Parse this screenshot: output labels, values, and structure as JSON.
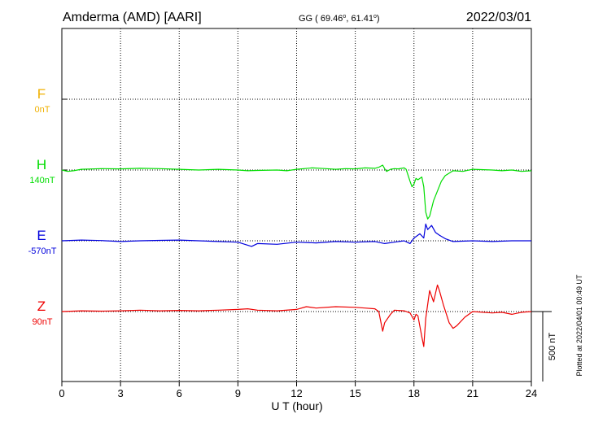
{
  "header": {
    "station": "Amderma (AMD)  [AARI]",
    "coords_prefix": "GG ( 69.46",
    "coords_mid": ",  61.41",
    "coords_suffix": ")",
    "date": "2022/03/01"
  },
  "footer": {
    "plotted": "Plotted at 2022/04/01 00:49 UT"
  },
  "chart_data": {
    "type": "line",
    "xlabel": "U T (hour)",
    "xlim": [
      0,
      24
    ],
    "xticks": [
      0,
      3,
      6,
      9,
      12,
      15,
      18,
      21,
      24
    ],
    "scale_label": "500 nT",
    "scale_nT": 500,
    "series": [
      {
        "name": "F",
        "baseline_label": "0nT",
        "color": "#f0b000",
        "points": []
      },
      {
        "name": "H",
        "baseline_label": "140nT",
        "color": "#00dd00",
        "points": [
          [
            0,
            0
          ],
          [
            0.3,
            -10
          ],
          [
            0.6,
            -5
          ],
          [
            1,
            5
          ],
          [
            2,
            10
          ],
          [
            3,
            8
          ],
          [
            4,
            12
          ],
          [
            5,
            10
          ],
          [
            6,
            5
          ],
          [
            7,
            0
          ],
          [
            8,
            5
          ],
          [
            9,
            0
          ],
          [
            9.5,
            -5
          ],
          [
            10,
            -3
          ],
          [
            11,
            0
          ],
          [
            11.5,
            -5
          ],
          [
            12,
            5
          ],
          [
            12.8,
            15
          ],
          [
            13.5,
            10
          ],
          [
            14,
            5
          ],
          [
            14.5,
            10
          ],
          [
            15,
            8
          ],
          [
            15.5,
            15
          ],
          [
            16,
            12
          ],
          [
            16.2,
            20
          ],
          [
            16.4,
            35
          ],
          [
            16.5,
            10
          ],
          [
            16.6,
            -10
          ],
          [
            16.8,
            5
          ],
          [
            17,
            10
          ],
          [
            17.2,
            8
          ],
          [
            17.5,
            15
          ],
          [
            17.6,
            5
          ],
          [
            17.8,
            -80
          ],
          [
            17.9,
            -120
          ],
          [
            18,
            -100
          ],
          [
            18.1,
            -60
          ],
          [
            18.2,
            -70
          ],
          [
            18.4,
            -50
          ],
          [
            18.5,
            -120
          ],
          [
            18.6,
            -300
          ],
          [
            18.7,
            -350
          ],
          [
            18.8,
            -330
          ],
          [
            19,
            -220
          ],
          [
            19.2,
            -150
          ],
          [
            19.4,
            -80
          ],
          [
            19.6,
            -40
          ],
          [
            20,
            -5
          ],
          [
            20.5,
            -10
          ],
          [
            21,
            5
          ],
          [
            22,
            0
          ],
          [
            22.5,
            -5
          ],
          [
            23,
            0
          ],
          [
            23.5,
            -10
          ],
          [
            24,
            -5
          ]
        ]
      },
      {
        "name": "E",
        "baseline_label": "-570nT",
        "color": "#0000dd",
        "points": [
          [
            0,
            0
          ],
          [
            1,
            5
          ],
          [
            2,
            2
          ],
          [
            3,
            -5
          ],
          [
            4,
            0
          ],
          [
            5,
            3
          ],
          [
            6,
            5
          ],
          [
            7,
            0
          ],
          [
            8,
            -5
          ],
          [
            9,
            -10
          ],
          [
            9.7,
            -40
          ],
          [
            10,
            -20
          ],
          [
            11,
            -25
          ],
          [
            12,
            -10
          ],
          [
            13,
            -15
          ],
          [
            14,
            -5
          ],
          [
            15,
            -10
          ],
          [
            16,
            -5
          ],
          [
            16.5,
            -20
          ],
          [
            17,
            -10
          ],
          [
            17.5,
            0
          ],
          [
            17.8,
            -20
          ],
          [
            18,
            20
          ],
          [
            18.3,
            50
          ],
          [
            18.5,
            20
          ],
          [
            18.6,
            120
          ],
          [
            18.7,
            80
          ],
          [
            18.9,
            110
          ],
          [
            19.1,
            60
          ],
          [
            19.3,
            40
          ],
          [
            19.6,
            15
          ],
          [
            20,
            -5
          ],
          [
            21,
            0
          ],
          [
            22,
            -5
          ],
          [
            23,
            0
          ],
          [
            24,
            0
          ]
        ]
      },
      {
        "name": "Z",
        "baseline_label": "90nT",
        "color": "#ee0000",
        "points": [
          [
            0,
            0
          ],
          [
            1,
            5
          ],
          [
            2,
            3
          ],
          [
            3,
            5
          ],
          [
            4,
            10
          ],
          [
            5,
            5
          ],
          [
            6,
            8
          ],
          [
            7,
            5
          ],
          [
            8,
            10
          ],
          [
            9,
            15
          ],
          [
            9.5,
            20
          ],
          [
            10,
            10
          ],
          [
            11,
            5
          ],
          [
            12,
            15
          ],
          [
            12.5,
            35
          ],
          [
            13,
            25
          ],
          [
            14,
            35
          ],
          [
            15,
            30
          ],
          [
            15.5,
            25
          ],
          [
            16,
            20
          ],
          [
            16.2,
            0
          ],
          [
            16.4,
            -140
          ],
          [
            16.5,
            -80
          ],
          [
            16.8,
            -20
          ],
          [
            17,
            10
          ],
          [
            17.5,
            5
          ],
          [
            17.8,
            -10
          ],
          [
            18,
            -60
          ],
          [
            18.1,
            -20
          ],
          [
            18.2,
            -30
          ],
          [
            18.4,
            -180
          ],
          [
            18.5,
            -250
          ],
          [
            18.6,
            -50
          ],
          [
            18.8,
            150
          ],
          [
            19,
            70
          ],
          [
            19.2,
            190
          ],
          [
            19.3,
            150
          ],
          [
            19.5,
            50
          ],
          [
            19.8,
            -80
          ],
          [
            20,
            -120
          ],
          [
            20.2,
            -100
          ],
          [
            20.6,
            -40
          ],
          [
            21,
            0
          ],
          [
            22,
            -10
          ],
          [
            22.5,
            -5
          ],
          [
            23,
            -20
          ],
          [
            23.5,
            -5
          ],
          [
            24,
            0
          ]
        ]
      }
    ]
  }
}
